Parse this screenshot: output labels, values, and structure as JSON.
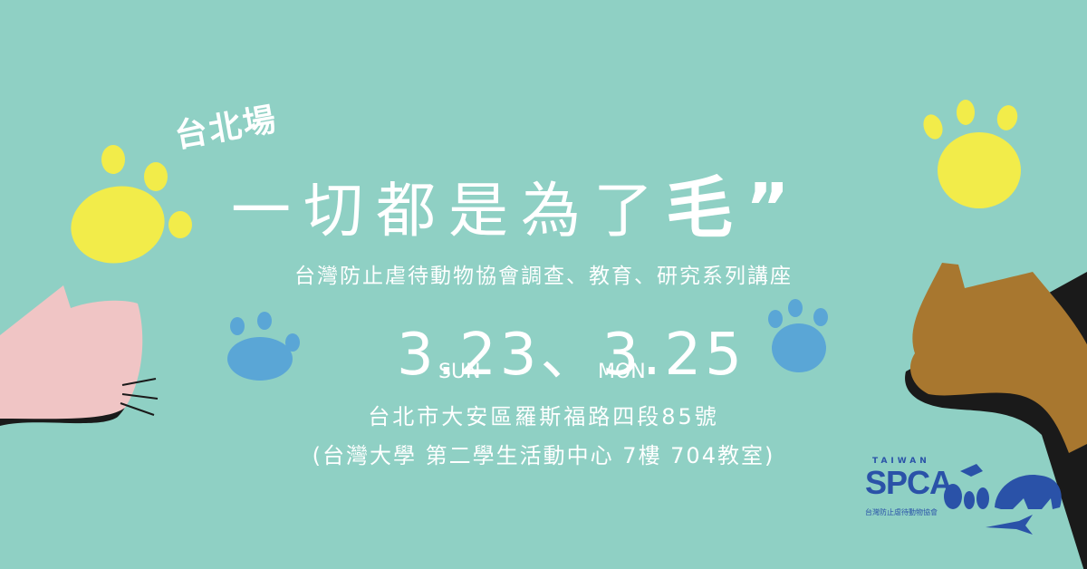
{
  "banner": {
    "city": "台北場",
    "title_main": "一切都是為了",
    "title_em": "毛”",
    "subtitle": "台灣防止虐待動物協會調查、教育、研究系列講座",
    "dates": "3.23、3.25",
    "day1": "SUN",
    "day2": "MON",
    "address": "台北市大安區羅斯福路四段85號",
    "venue": "(台灣大學 第二學生活動中心 7樓 704教室)"
  },
  "logo": {
    "top": "TAIWAN",
    "name": "SPCA",
    "cn": "台灣防止虐待動物協會"
  },
  "colors": {
    "background": "#8fd0c4",
    "paw_yellow": "#f2ec4a",
    "paw_blue": "#5aa6d6",
    "cat_pink": "#f0c5c5",
    "dog_brown": "#a8772f",
    "logo_blue": "#2a52a8"
  }
}
